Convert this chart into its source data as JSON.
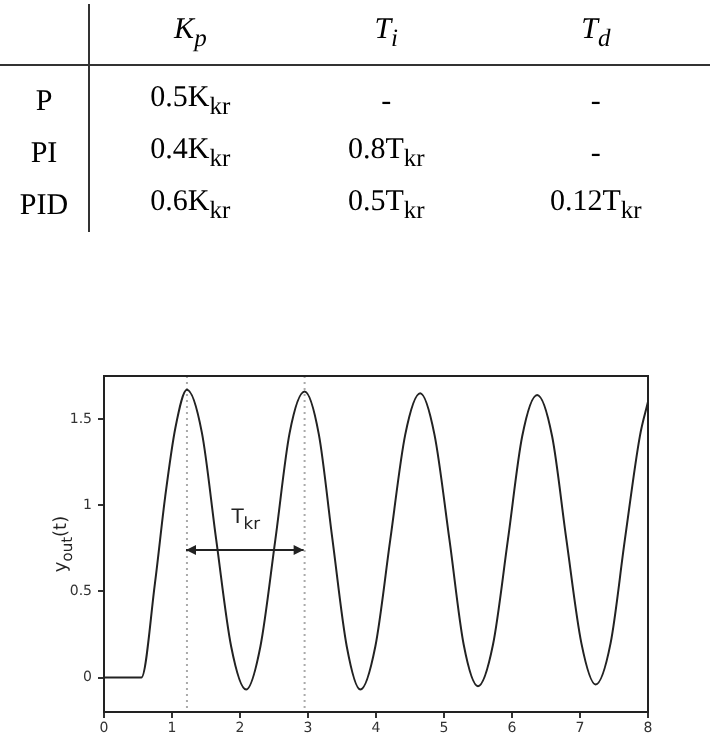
{
  "chart_data": [
    {
      "type": "other",
      "annotations": [
        "K$_{p}$",
        "T$_{i}$",
        "T$_{d}$",
        "P",
        "0.5K$_{kr}$",
        "-",
        "-",
        "PI",
        "0.4K$_{kr}$",
        "0.8T$_{kr}$",
        "-",
        "PID",
        "0.6K$_{kr}$",
        "0.5T$_{kr}$",
        "0.12T$_{kr}$"
      ]
    },
    {
      "type": "line",
      "ylabel": "y$_{out}$(t)",
      "xlim": [
        0,
        8
      ],
      "xticks": [
        0,
        1,
        2,
        3,
        4,
        5,
        6,
        7,
        8
      ],
      "ylim": [
        -0.2,
        1.75
      ],
      "yticks": [
        0,
        0.5,
        1,
        1.5
      ],
      "grid": false,
      "legend": false,
      "marker": "none",
      "line_style": "solid",
      "annotations": [
        "T$_{kr}$"
      ],
      "ref_lines": [
        {
          "axis": "x",
          "value": 1.22,
          "color": "#aaaaaa",
          "line_style": "dotted"
        },
        {
          "axis": "x",
          "value": 2.95,
          "color": "#aaaaaa",
          "line_style": "dotted"
        }
      ],
      "series": [
        {
          "color": "#222222",
          "x": [
            0,
            0.55,
            0.75,
            0.9,
            1.05,
            1.22,
            1.44,
            1.65,
            1.87,
            2.09,
            2.3,
            2.52,
            2.73,
            2.95,
            3.16,
            3.36,
            3.57,
            3.77,
            3.99,
            4.21,
            4.43,
            4.65,
            4.86,
            5.08,
            5.29,
            5.5,
            5.72,
            5.94,
            6.15,
            6.37,
            6.59,
            6.8,
            7.02,
            7.23,
            7.45,
            7.66,
            7.88,
            8
          ],
          "values": [
            0,
            0,
            0.55,
            1.05,
            1.45,
            1.67,
            1.42,
            0.8,
            0.18,
            -0.07,
            0.18,
            0.8,
            1.42,
            1.66,
            1.41,
            0.8,
            0.18,
            -0.07,
            0.18,
            0.8,
            1.41,
            1.65,
            1.41,
            0.8,
            0.19,
            -0.05,
            0.19,
            0.8,
            1.4,
            1.64,
            1.4,
            0.8,
            0.2,
            -0.04,
            0.2,
            0.8,
            1.4,
            1.6
          ]
        }
      ]
    }
  ]
}
